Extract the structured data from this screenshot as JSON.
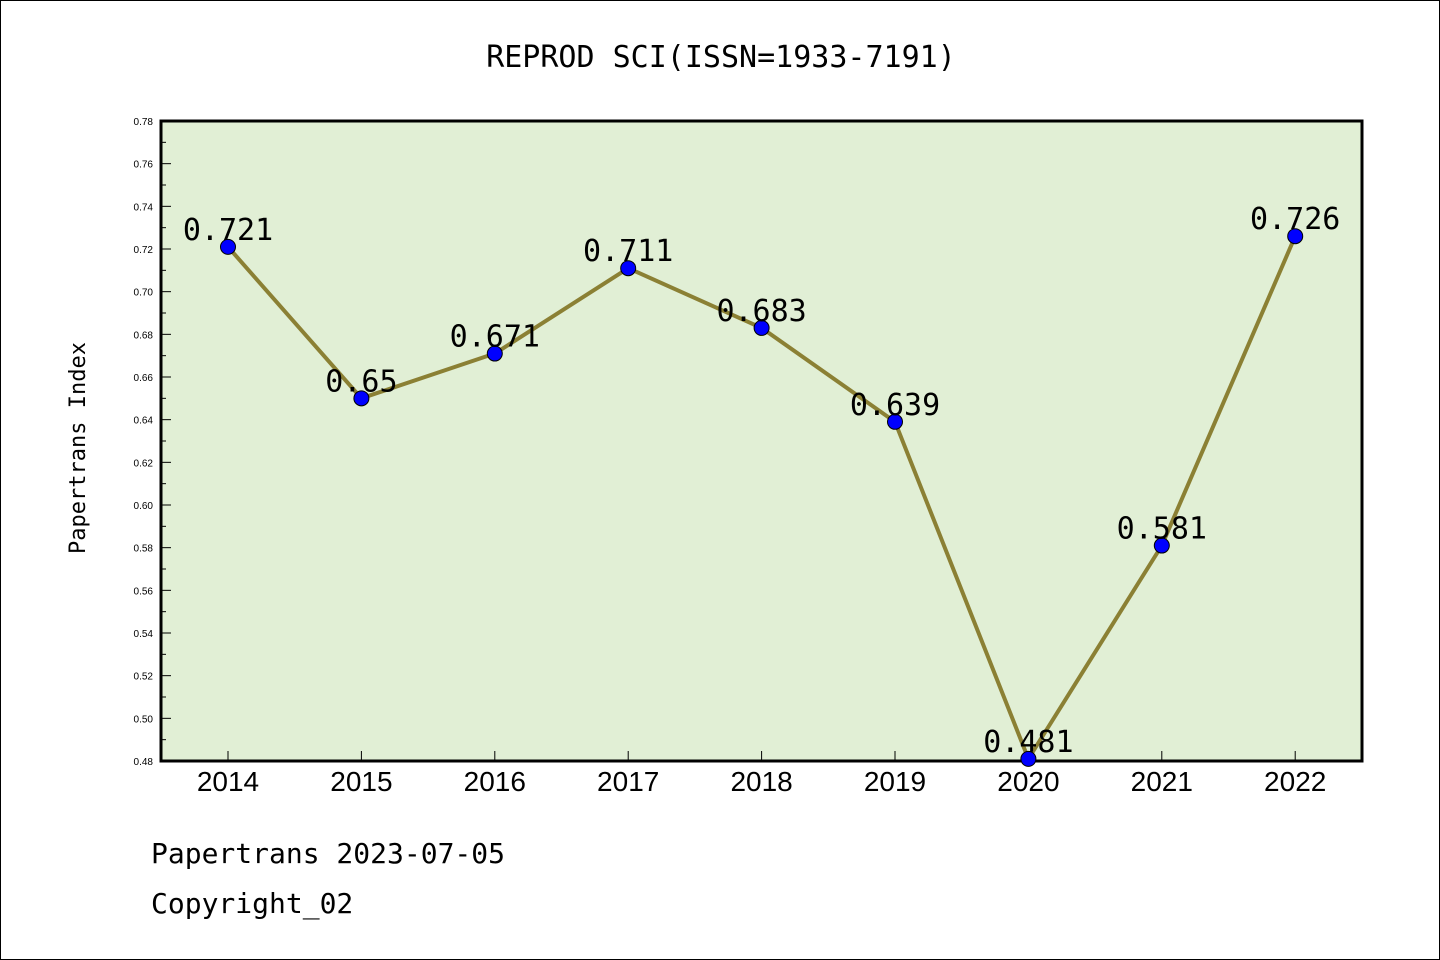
{
  "chart_data": {
    "type": "line",
    "title": "REPROD SCI(ISSN=1933-7191)",
    "xlabel": "",
    "ylabel": "Papertrans Index",
    "categories": [
      "2014",
      "2015",
      "2016",
      "2017",
      "2018",
      "2019",
      "2020",
      "2021",
      "2022"
    ],
    "series": [
      {
        "values": [
          0.721,
          0.65,
          0.671,
          0.711,
          0.683,
          0.639,
          0.481,
          0.581,
          0.726
        ],
        "labels": [
          "0.721",
          "0.65",
          "0.671",
          "0.711",
          "0.683",
          "0.639",
          "0.481",
          "0.581",
          "0.726"
        ]
      }
    ],
    "ylim": [
      0.48,
      0.78
    ],
    "yticks": [
      "0.48",
      "0.50",
      "0.52",
      "0.54",
      "0.56",
      "0.58",
      "0.60",
      "0.62",
      "0.64",
      "0.66",
      "0.68",
      "0.70",
      "0.72",
      "0.74",
      "0.76",
      "0.78"
    ],
    "grid": false,
    "colors": {
      "plot_background": "#e1efd5",
      "line": "#8b8034",
      "marker": "#0000ff"
    }
  },
  "footer": {
    "line1": "Papertrans 2023-07-05",
    "line2": "Copyright_02"
  }
}
